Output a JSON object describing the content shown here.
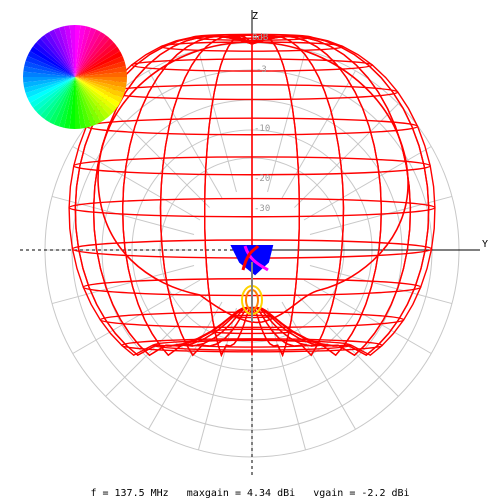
{
  "plot": {
    "axes": {
      "z_label": "Z",
      "y_label": "Y"
    },
    "rings_db": [
      "0dB",
      "-3",
      "-10",
      "-20",
      "-30"
    ],
    "colors": {
      "pattern": "#ff0000",
      "grid": "#c8c8c8",
      "feed_blue": "#0000ff",
      "feed_magenta": "#ff00ff",
      "feed_yellow": "#ffd400",
      "feed_orange": "#ff8000"
    },
    "legend": "polarization color wheel"
  },
  "status": {
    "frequency": "f = 137.5 MHz",
    "maxgain": "maxgain = 4.34 dBi",
    "vgain": "vgain = -2.2 dBi"
  }
}
